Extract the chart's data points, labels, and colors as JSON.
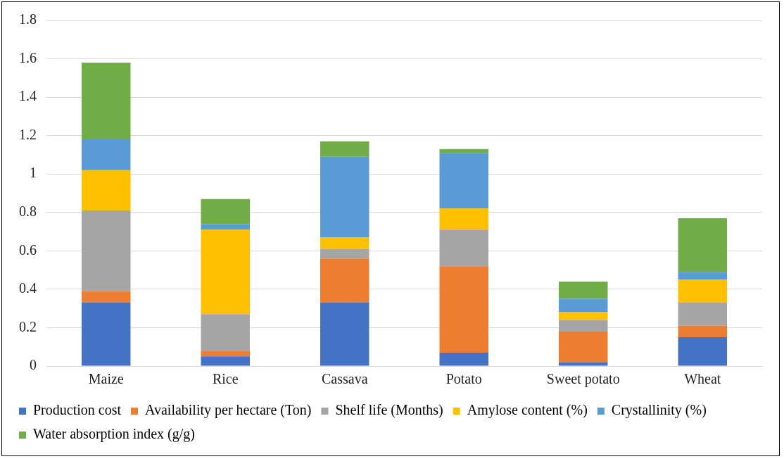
{
  "chart_data": {
    "type": "bar",
    "stacked": true,
    "categories": [
      "Maize",
      "Rice",
      "Cassava",
      "Potato",
      "Sweet potato",
      "Wheat"
    ],
    "series": [
      {
        "name": "Production cost",
        "color": "#4472c4",
        "values": [
          0.33,
          0.05,
          0.33,
          0.07,
          0.02,
          0.15
        ]
      },
      {
        "name": "Availability per hectare (Ton)",
        "color": "#ed7d31",
        "values": [
          0.06,
          0.03,
          0.23,
          0.45,
          0.16,
          0.06
        ]
      },
      {
        "name": "Shelf life (Months)",
        "color": "#a5a5a5",
        "values": [
          0.42,
          0.19,
          0.05,
          0.19,
          0.06,
          0.12
        ]
      },
      {
        "name": "Amylose content (%)",
        "color": "#ffc000",
        "values": [
          0.21,
          0.44,
          0.06,
          0.11,
          0.04,
          0.12
        ]
      },
      {
        "name": "Crystallinity (%)",
        "color": "#5b9bd5",
        "values": [
          0.16,
          0.03,
          0.42,
          0.29,
          0.07,
          0.04
        ]
      },
      {
        "name": "Water absorption index (g/g)",
        "color": "#70ad47",
        "values": [
          0.4,
          0.13,
          0.08,
          0.02,
          0.09,
          0.28
        ]
      }
    ],
    "ylim": [
      0,
      1.8
    ],
    "yticks": [
      0,
      0.2,
      0.4,
      0.6,
      0.8,
      1,
      1.2,
      1.4,
      1.6,
      1.8
    ],
    "grid": "y",
    "legend": "bottom"
  }
}
